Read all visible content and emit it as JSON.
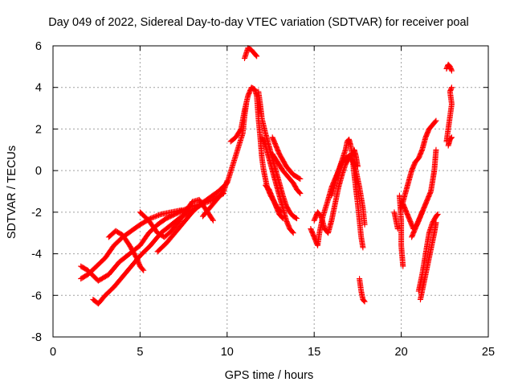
{
  "chart_data": {
    "type": "scatter",
    "title": "Day 049 of 2022, Sidereal Day-to-day VTEC variation (SDTVAR) for receiver poal",
    "xlabel": "GPS time / hours",
    "ylabel": "SDTVAR / TECUs",
    "xlim": [
      0,
      25
    ],
    "ylim": [
      -8,
      6
    ],
    "x_ticks": [
      0,
      5,
      10,
      15,
      20,
      25
    ],
    "y_ticks": [
      -8,
      -6,
      -4,
      -2,
      0,
      2,
      4,
      6
    ],
    "grid": true,
    "marker": "+",
    "series": [
      {
        "name": "SDTVAR",
        "color": "#ff0000",
        "traces": [
          [
            [
              1.6,
              -4.6
            ],
            [
              2.0,
              -4.8
            ],
            [
              2.6,
              -5.3
            ],
            [
              3.2,
              -5.0
            ],
            [
              3.8,
              -4.4
            ],
            [
              4.4,
              -4.0
            ],
            [
              5.0,
              -3.6
            ],
            [
              5.5,
              -3.0
            ],
            [
              6.0,
              -2.6
            ],
            [
              6.5,
              -2.3
            ],
            [
              7.0,
              -2.1
            ],
            [
              7.5,
              -1.9
            ],
            [
              8.0,
              -1.7
            ],
            [
              8.5,
              -1.6
            ]
          ],
          [
            [
              1.6,
              -5.2
            ],
            [
              2.0,
              -5.0
            ],
            [
              2.5,
              -4.6
            ],
            [
              3.0,
              -4.2
            ],
            [
              3.5,
              -3.6
            ],
            [
              4.0,
              -3.2
            ],
            [
              4.5,
              -2.9
            ],
            [
              5.0,
              -2.6
            ],
            [
              5.6,
              -2.3
            ],
            [
              6.2,
              -2.1
            ],
            [
              6.8,
              -2.0
            ],
            [
              7.4,
              -1.9
            ]
          ],
          [
            [
              2.3,
              -6.2
            ],
            [
              2.6,
              -6.4
            ],
            [
              3.0,
              -6.0
            ],
            [
              3.5,
              -5.6
            ],
            [
              4.0,
              -5.1
            ],
            [
              4.5,
              -4.6
            ],
            [
              5.0,
              -4.1
            ],
            [
              5.6,
              -3.6
            ],
            [
              6.2,
              -3.0
            ],
            [
              6.8,
              -2.6
            ],
            [
              7.4,
              -2.2
            ],
            [
              8.0,
              -1.9
            ],
            [
              8.6,
              -1.6
            ],
            [
              9.2,
              -1.4
            ],
            [
              9.8,
              -1.1
            ]
          ],
          [
            [
              3.2,
              -3.2
            ],
            [
              3.6,
              -2.9
            ],
            [
              4.0,
              -3.1
            ],
            [
              4.4,
              -3.6
            ],
            [
              4.8,
              -4.2
            ],
            [
              5.0,
              -4.6
            ],
            [
              5.2,
              -4.8
            ]
          ],
          [
            [
              5.0,
              -2.0
            ],
            [
              5.5,
              -2.4
            ],
            [
              6.0,
              -3.0
            ],
            [
              6.4,
              -3.2
            ],
            [
              6.8,
              -2.9
            ],
            [
              7.2,
              -2.5
            ],
            [
              7.6,
              -2.0
            ],
            [
              8.0,
              -1.5
            ],
            [
              8.4,
              -1.4
            ],
            [
              8.8,
              -1.9
            ],
            [
              9.2,
              -2.4
            ]
          ],
          [
            [
              6.0,
              -3.9
            ],
            [
              6.5,
              -3.5
            ],
            [
              7.0,
              -3.0
            ],
            [
              7.5,
              -2.5
            ],
            [
              8.0,
              -2.0
            ],
            [
              8.5,
              -1.6
            ],
            [
              9.0,
              -1.3
            ],
            [
              9.5,
              -1.0
            ],
            [
              10.0,
              -0.6
            ],
            [
              10.3,
              0.2
            ],
            [
              10.6,
              1.0
            ],
            [
              10.9,
              1.8
            ],
            [
              11.0,
              2.6
            ],
            [
              11.1,
              3.2
            ]
          ],
          [
            [
              8.6,
              -2.2
            ],
            [
              9.0,
              -1.8
            ],
            [
              9.4,
              -1.4
            ],
            [
              9.8,
              -1.0
            ],
            [
              10.0,
              -0.5
            ]
          ],
          [
            [
              10.2,
              1.4
            ],
            [
              10.5,
              1.6
            ],
            [
              10.8,
              2.0
            ],
            [
              11.0,
              2.9
            ],
            [
              11.2,
              3.6
            ],
            [
              11.4,
              4.0
            ],
            [
              11.6,
              3.9
            ],
            [
              11.7,
              3.6
            ],
            [
              11.8,
              2.5
            ],
            [
              11.9,
              1.6
            ],
            [
              12.0,
              0.6
            ],
            [
              12.1,
              0.0
            ],
            [
              12.2,
              -0.4
            ],
            [
              12.3,
              -0.8
            ],
            [
              12.5,
              -1.2
            ],
            [
              12.7,
              -1.5
            ],
            [
              12.9,
              -1.8
            ],
            [
              13.1,
              -2.0
            ]
          ],
          [
            [
              11.0,
              5.4
            ],
            [
              11.2,
              5.9
            ],
            [
              11.4,
              5.8
            ],
            [
              11.6,
              5.6
            ],
            [
              11.7,
              5.5
            ]
          ],
          [
            [
              11.8,
              3.8
            ],
            [
              11.9,
              3.2
            ],
            [
              12.0,
              2.5
            ],
            [
              12.2,
              1.8
            ],
            [
              12.4,
              1.2
            ],
            [
              12.6,
              0.6
            ],
            [
              12.8,
              0.0
            ],
            [
              13.0,
              -0.6
            ],
            [
              13.2,
              -1.2
            ],
            [
              13.4,
              -1.7
            ],
            [
              13.6,
              -2.0
            ],
            [
              13.8,
              -2.2
            ],
            [
              14.0,
              -2.3
            ]
          ],
          [
            [
              12.0,
              1.6
            ],
            [
              12.2,
              1.2
            ],
            [
              12.4,
              0.6
            ],
            [
              12.6,
              0.0
            ],
            [
              12.8,
              -0.6
            ],
            [
              13.0,
              -1.2
            ],
            [
              13.2,
              -1.8
            ],
            [
              13.4,
              -2.4
            ],
            [
              13.6,
              -2.8
            ],
            [
              13.8,
              -3.0
            ]
          ],
          [
            [
              12.6,
              1.6
            ],
            [
              12.8,
              1.2
            ],
            [
              13.0,
              0.8
            ],
            [
              13.2,
              0.5
            ],
            [
              13.4,
              0.2
            ],
            [
              13.6,
              0.0
            ],
            [
              13.8,
              -0.2
            ],
            [
              14.0,
              -0.3
            ],
            [
              14.2,
              -0.4
            ]
          ],
          [
            [
              12.6,
              0.8
            ],
            [
              12.9,
              0.4
            ],
            [
              13.2,
              0.0
            ],
            [
              13.5,
              -0.3
            ],
            [
              13.8,
              -0.6
            ],
            [
              14.0,
              -0.9
            ],
            [
              14.2,
              -1.1
            ]
          ],
          [
            [
              12.2,
              -0.7
            ],
            [
              12.4,
              -0.9
            ],
            [
              12.6,
              -1.3
            ],
            [
              12.8,
              -1.7
            ],
            [
              13.0,
              -2.1
            ],
            [
              13.2,
              -2.3
            ]
          ],
          [
            [
              14.8,
              -2.8
            ],
            [
              15.0,
              -3.2
            ],
            [
              15.2,
              -3.6
            ],
            [
              15.3,
              -3.0
            ],
            [
              15.5,
              -2.2
            ],
            [
              15.8,
              -1.4
            ],
            [
              16.0,
              -0.8
            ],
            [
              16.2,
              -0.4
            ],
            [
              16.4,
              0.0
            ],
            [
              16.6,
              0.5
            ],
            [
              16.8,
              1.0
            ],
            [
              16.9,
              1.4
            ],
            [
              17.0,
              1.5
            ],
            [
              17.1,
              1.2
            ],
            [
              17.2,
              0.6
            ],
            [
              17.3,
              -0.2
            ],
            [
              17.4,
              -0.9
            ],
            [
              17.5,
              -1.6
            ],
            [
              17.6,
              -2.4
            ],
            [
              17.7,
              -3.2
            ],
            [
              17.8,
              -3.7
            ]
          ],
          [
            [
              15.0,
              -2.4
            ],
            [
              15.2,
              -2.0
            ],
            [
              15.4,
              -2.2
            ],
            [
              15.6,
              -2.8
            ],
            [
              15.8,
              -3.0
            ],
            [
              16.0,
              -2.4
            ],
            [
              16.2,
              -1.6
            ],
            [
              16.4,
              -0.8
            ],
            [
              16.6,
              -0.2
            ],
            [
              16.8,
              0.3
            ],
            [
              17.0,
              0.6
            ],
            [
              17.2,
              0.8
            ],
            [
              17.3,
              1.0
            ],
            [
              17.4,
              0.7
            ],
            [
              17.5,
              0.2
            ]
          ],
          [
            [
              16.0,
              -1.2
            ],
            [
              16.2,
              -0.6
            ],
            [
              16.4,
              0.0
            ],
            [
              16.6,
              0.4
            ],
            [
              16.8,
              0.6
            ],
            [
              17.0,
              0.7
            ],
            [
              17.2,
              0.5
            ],
            [
              17.4,
              0.0
            ],
            [
              17.6,
              -0.8
            ],
            [
              17.8,
              -1.8
            ],
            [
              17.9,
              -2.6
            ]
          ],
          [
            [
              17.6,
              -5.2
            ],
            [
              17.7,
              -5.8
            ],
            [
              17.8,
              -6.2
            ],
            [
              17.9,
              -6.3
            ]
          ],
          [
            [
              19.6,
              -2.0
            ],
            [
              19.7,
              -2.4
            ],
            [
              19.8,
              -2.8
            ]
          ],
          [
            [
              19.9,
              -1.2
            ],
            [
              20.0,
              -2.4
            ],
            [
              20.0,
              -3.6
            ],
            [
              20.1,
              -4.6
            ]
          ],
          [
            [
              20.1,
              -1.6
            ],
            [
              20.3,
              -2.0
            ],
            [
              20.5,
              -2.4
            ],
            [
              20.7,
              -2.8
            ],
            [
              20.9,
              -2.6
            ],
            [
              21.1,
              -2.2
            ],
            [
              21.3,
              -1.8
            ],
            [
              21.5,
              -1.4
            ],
            [
              21.7,
              -1.0
            ],
            [
              21.8,
              -0.5
            ],
            [
              21.9,
              0.0
            ],
            [
              22.0,
              1.0
            ]
          ],
          [
            [
              20.0,
              -1.8
            ],
            [
              20.2,
              -1.2
            ],
            [
              20.4,
              -0.6
            ],
            [
              20.6,
              0.0
            ],
            [
              20.8,
              0.4
            ],
            [
              21.0,
              0.6
            ],
            [
              21.2,
              1.0
            ],
            [
              21.4,
              1.6
            ],
            [
              21.6,
              2.0
            ],
            [
              21.8,
              2.2
            ],
            [
              22.0,
              2.4
            ]
          ],
          [
            [
              20.6,
              -3.2
            ],
            [
              20.8,
              -2.8
            ],
            [
              21.0,
              -2.4
            ],
            [
              21.2,
              -2.0
            ]
          ],
          [
            [
              21.0,
              -5.8
            ],
            [
              21.2,
              -5.0
            ],
            [
              21.4,
              -4.0
            ],
            [
              21.6,
              -3.0
            ],
            [
              21.8,
              -2.5
            ],
            [
              22.0,
              -2.2
            ],
            [
              22.1,
              -2.1
            ]
          ],
          [
            [
              21.1,
              -6.2
            ],
            [
              21.3,
              -5.4
            ],
            [
              21.5,
              -4.6
            ],
            [
              21.7,
              -3.8
            ],
            [
              21.9,
              -3.0
            ],
            [
              22.0,
              -2.5
            ]
          ],
          [
            [
              22.6,
              1.4
            ],
            [
              22.7,
              2.0
            ],
            [
              22.8,
              2.6
            ],
            [
              22.9,
              3.2
            ],
            [
              22.8,
              3.8
            ],
            [
              22.9,
              4.0
            ]
          ],
          [
            [
              22.6,
              4.9
            ],
            [
              22.7,
              5.1
            ],
            [
              22.8,
              5.0
            ],
            [
              22.9,
              4.8
            ]
          ],
          [
            [
              22.7,
              1.2
            ],
            [
              22.8,
              1.5
            ],
            [
              22.9,
              1.6
            ]
          ]
        ]
      }
    ]
  }
}
